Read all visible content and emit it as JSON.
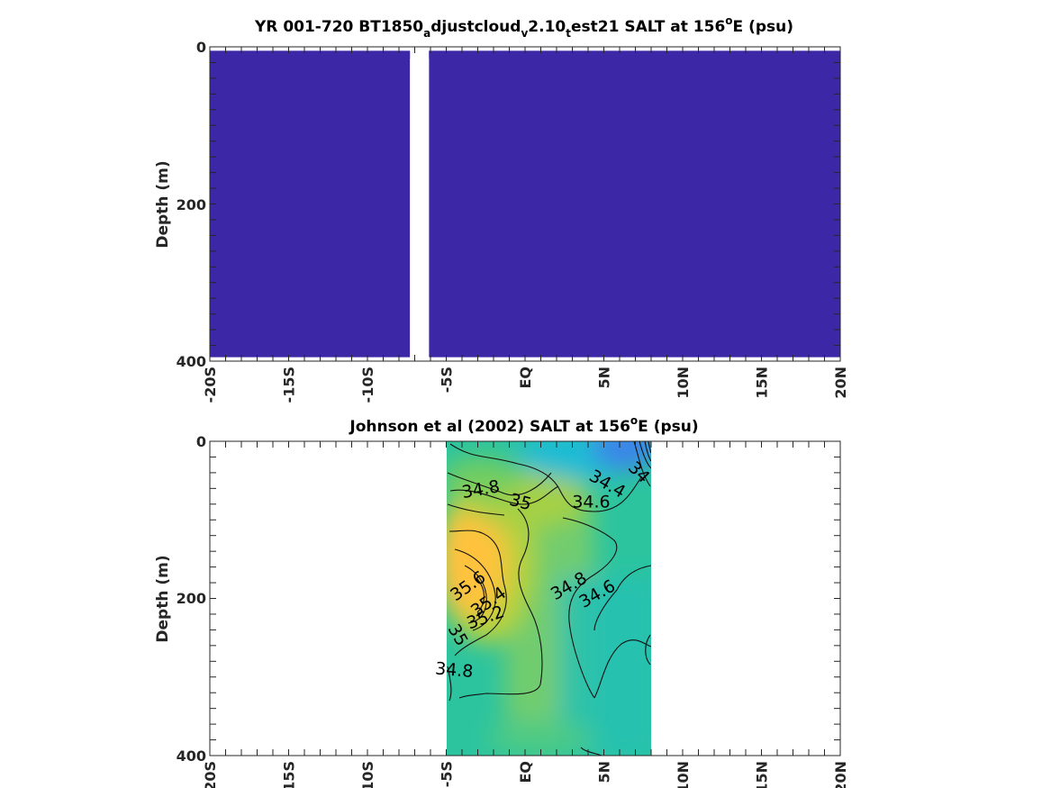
{
  "chart_data": [
    {
      "type": "heatmap",
      "title_parts": [
        "YR 001-720 BT1850",
        "a",
        "djustcloud",
        "v",
        "2.10",
        "t",
        "est21 SALT at 156",
        "o",
        "E (psu)"
      ],
      "ylabel": "Depth (m)",
      "xlim": [
        -20,
        20
      ],
      "ylim": [
        0,
        400
      ],
      "y_reversed": true,
      "x_ticks": [
        -20,
        -15,
        -10,
        -5,
        0,
        5,
        10,
        15,
        20
      ],
      "x_tick_labels": [
        "-20S",
        "-15S",
        "-10S",
        "-5S",
        "EQ",
        "5N",
        "10N",
        "15N",
        "20N"
      ],
      "y_ticks": [
        0,
        200,
        400
      ],
      "y_tick_labels": [
        "0",
        "200",
        "400"
      ],
      "fill_color": "#3c27a6",
      "fill_regions": [
        {
          "x": [
            -20,
            -7.3
          ],
          "depth": [
            5,
            395
          ]
        },
        {
          "x": [
            -6.1,
            20
          ],
          "depth": [
            5,
            395
          ]
        }
      ],
      "gap_region": {
        "x": [
          -7.3,
          -6.1
        ],
        "depth": [
          15,
          400
        ]
      }
    },
    {
      "type": "heatmap",
      "title_parts": [
        "Johnson et al (2002) SALT at 156",
        "o",
        "E (psu)"
      ],
      "ylabel": "Depth (m)",
      "xlim": [
        -20,
        20
      ],
      "ylim": [
        0,
        400
      ],
      "y_reversed": true,
      "x_ticks": [
        -20,
        -15,
        -10,
        -5,
        0,
        5,
        10,
        15,
        20
      ],
      "x_tick_labels": [
        "20S",
        "15S",
        "10S",
        "-5S",
        "EQ",
        "5N",
        "10N",
        "15N",
        "20N"
      ],
      "y_ticks": [
        0,
        200,
        400
      ],
      "y_tick_labels": [
        "0",
        "200",
        "400"
      ],
      "data_extent": {
        "x": [
          -5,
          8
        ],
        "depth": [
          0,
          400
        ]
      },
      "colormap": [
        "#3a86e8",
        "#12b3d6",
        "#1fc1b4",
        "#3fcf8d",
        "#a9cf3c",
        "#ffc23c"
      ],
      "contour_interval": 0.2,
      "contour_levels": [
        34.2,
        34.4,
        34.6,
        34.8,
        35.0,
        35.2,
        35.4,
        35.6
      ],
      "contour_labels": [
        {
          "text": "34.8",
          "x": -2.8,
          "depth": 62,
          "angle": -10
        },
        {
          "text": "35",
          "x": -0.3,
          "depth": 78,
          "angle": 15
        },
        {
          "text": "34.6",
          "x": 4.2,
          "depth": 78,
          "angle": 0
        },
        {
          "text": "34.4",
          "x": 5.2,
          "depth": 55,
          "angle": 30
        },
        {
          "text": "34",
          "x": 7.2,
          "depth": 40,
          "angle": 45
        },
        {
          "text": "35.6",
          "x": -3.6,
          "depth": 185,
          "angle": -35
        },
        {
          "text": "35.4",
          "x": -2.3,
          "depth": 205,
          "angle": -35
        },
        {
          "text": "35.2",
          "x": -2.5,
          "depth": 225,
          "angle": -20
        },
        {
          "text": "35",
          "x": -4.3,
          "depth": 247,
          "angle": 60
        },
        {
          "text": "34.8",
          "x": -4.5,
          "depth": 292,
          "angle": 5
        },
        {
          "text": "34.8",
          "x": 2.8,
          "depth": 185,
          "angle": -30
        },
        {
          "text": "34.6",
          "x": 4.6,
          "depth": 195,
          "angle": -30
        }
      ]
    }
  ]
}
